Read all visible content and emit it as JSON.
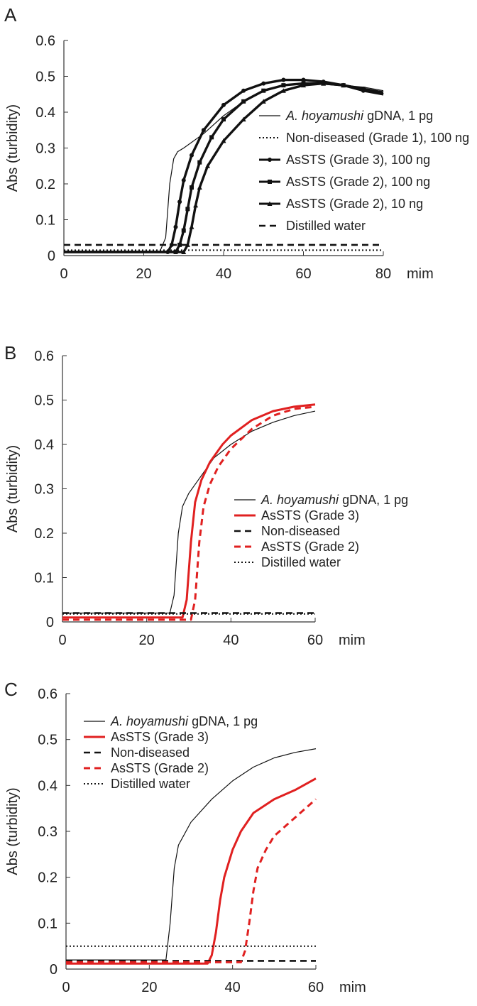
{
  "chart_data": [
    {
      "type": "line",
      "panel_label": "A",
      "title": "",
      "xlabel": "mim",
      "ylabel": "Abs (turbidity)",
      "xlim": [
        0,
        80
      ],
      "ylim": [
        0,
        0.6
      ],
      "x_ticks": [
        "0",
        "20",
        "40",
        "60",
        "80"
      ],
      "y_ticks": [
        "0",
        "0.1",
        "0.2",
        "0.3",
        "0.4",
        "0.5",
        "0.6"
      ],
      "legend_position": "right",
      "series": [
        {
          "name": "A. hoyamushi gDNA, 1 pg",
          "name_italic": "A. hoyamushi",
          "name_rest": " gDNA, 1 pg",
          "color": "#111111",
          "style": "thin",
          "x": [
            0,
            24,
            25.5,
            26.5,
            27.5,
            28.5,
            30,
            35,
            40,
            45,
            50,
            55,
            60,
            65,
            70,
            75,
            80
          ],
          "y": [
            0.01,
            0.01,
            0.05,
            0.2,
            0.27,
            0.29,
            0.3,
            0.34,
            0.39,
            0.43,
            0.46,
            0.475,
            0.48,
            0.48,
            0.475,
            0.47,
            0.46
          ]
        },
        {
          "name": "Non-diseased (Grade 1), 100 ng",
          "color": "#111111",
          "style": "dotted",
          "x": [
            0,
            80
          ],
          "y": [
            0.015,
            0.015
          ]
        },
        {
          "name": "AsSTS (Grade 3), 100 ng",
          "color": "#111111",
          "style": "thick-dot",
          "x": [
            0,
            26,
            27,
            28,
            29,
            30,
            32,
            35,
            40,
            45,
            50,
            55,
            60,
            65,
            70,
            75,
            80
          ],
          "y": [
            0.01,
            0.01,
            0.03,
            0.08,
            0.15,
            0.21,
            0.28,
            0.35,
            0.42,
            0.46,
            0.48,
            0.49,
            0.49,
            0.485,
            0.475,
            0.46,
            0.45
          ]
        },
        {
          "name": "AsSTS (Grade 2), 100 ng",
          "color": "#111111",
          "style": "thick-square",
          "x": [
            0,
            28,
            29,
            30,
            31,
            32,
            34,
            37,
            40,
            45,
            50,
            55,
            60,
            65,
            70,
            75,
            80
          ],
          "y": [
            0.01,
            0.01,
            0.03,
            0.07,
            0.13,
            0.19,
            0.26,
            0.33,
            0.38,
            0.43,
            0.46,
            0.475,
            0.48,
            0.48,
            0.475,
            0.465,
            0.45
          ]
        },
        {
          "name": "AsSTS (Grade 2), 10 ng",
          "color": "#111111",
          "style": "thick-triangle",
          "x": [
            0,
            30,
            31,
            32,
            33,
            34,
            36,
            40,
            45,
            50,
            55,
            60,
            65,
            70,
            75,
            80
          ],
          "y": [
            0.01,
            0.01,
            0.03,
            0.08,
            0.14,
            0.19,
            0.25,
            0.32,
            0.38,
            0.43,
            0.46,
            0.475,
            0.48,
            0.475,
            0.465,
            0.455
          ]
        },
        {
          "name": "Distilled water",
          "color": "#111111",
          "style": "dashed",
          "x": [
            0,
            80
          ],
          "y": [
            0.03,
            0.03
          ]
        }
      ]
    },
    {
      "type": "line",
      "panel_label": "B",
      "title": "",
      "xlabel": "mim",
      "ylabel": "Abs (turbidity)",
      "xlim": [
        0,
        60
      ],
      "ylim": [
        0,
        0.6
      ],
      "x_ticks": [
        "0",
        "20",
        "40",
        "60"
      ],
      "y_ticks": [
        "0",
        "0.1",
        "0.2",
        "0.3",
        "0.4",
        "0.5",
        "0.6"
      ],
      "legend_position": "right",
      "series": [
        {
          "name": "A. hoyamushi gDNA, 1 pg",
          "name_italic": "A. hoyamushi",
          "name_rest": " gDNA, 1 pg",
          "color": "#111111",
          "style": "thin",
          "x": [
            0,
            25.5,
            26.5,
            27.5,
            28.5,
            30,
            33,
            36,
            40,
            45,
            50,
            55,
            60
          ],
          "y": [
            0.02,
            0.02,
            0.06,
            0.2,
            0.26,
            0.29,
            0.33,
            0.37,
            0.4,
            0.43,
            0.45,
            0.465,
            0.475
          ]
        },
        {
          "name": "AsSTS (Grade 3)",
          "color": "#e02020",
          "style": "red-solid",
          "x": [
            0,
            28.5,
            29.5,
            30.5,
            31.5,
            33,
            35,
            38,
            40,
            45,
            50,
            55,
            60
          ],
          "y": [
            0.01,
            0.01,
            0.05,
            0.18,
            0.27,
            0.32,
            0.36,
            0.4,
            0.42,
            0.455,
            0.475,
            0.485,
            0.49
          ]
        },
        {
          "name": "Non-diseased",
          "color": "#111111",
          "style": "dashed",
          "x": [
            0,
            60
          ],
          "y": [
            0.02,
            0.02
          ]
        },
        {
          "name": "AsSTS (Grade 2)",
          "color": "#e02020",
          "style": "red-dashed",
          "x": [
            0,
            30.5,
            31.5,
            32.5,
            33.5,
            35,
            37,
            40,
            45,
            50,
            55,
            60
          ],
          "y": [
            0.005,
            0.005,
            0.05,
            0.18,
            0.26,
            0.31,
            0.35,
            0.39,
            0.435,
            0.465,
            0.48,
            0.485
          ]
        },
        {
          "name": "Distilled water",
          "color": "#111111",
          "style": "dotted",
          "x": [
            0,
            60
          ],
          "y": [
            0.018,
            0.018
          ]
        }
      ]
    },
    {
      "type": "line",
      "panel_label": "C",
      "title": "",
      "xlabel": "mim",
      "ylabel": "Abs (turbidity)",
      "xlim": [
        0,
        60
      ],
      "ylim": [
        0,
        0.6
      ],
      "x_ticks": [
        "0",
        "20",
        "40",
        "60"
      ],
      "y_ticks": [
        "0",
        "0.1",
        "0.2",
        "0.3",
        "0.4",
        "0.5",
        "0.6"
      ],
      "legend_position": "top-left",
      "series": [
        {
          "name": "A. hoyamushi gDNA, 1 pg",
          "name_italic": "A. hoyamushi",
          "name_rest": " gDNA, 1 pg",
          "color": "#111111",
          "style": "thin",
          "x": [
            0,
            24,
            25,
            26,
            27,
            30,
            35,
            40,
            45,
            50,
            55,
            60
          ],
          "y": [
            0.02,
            0.02,
            0.1,
            0.22,
            0.27,
            0.32,
            0.37,
            0.41,
            0.44,
            0.46,
            0.472,
            0.48
          ]
        },
        {
          "name": "AsSTS (Grade 3)",
          "color": "#e02020",
          "style": "red-solid",
          "x": [
            0,
            34,
            35,
            36,
            37,
            38,
            40,
            42,
            45,
            50,
            55,
            60
          ],
          "y": [
            0.012,
            0.012,
            0.03,
            0.08,
            0.15,
            0.2,
            0.26,
            0.3,
            0.34,
            0.37,
            0.39,
            0.415
          ]
        },
        {
          "name": "Non-diseased",
          "color": "#111111",
          "style": "dashed",
          "x": [
            0,
            60
          ],
          "y": [
            0.018,
            0.018
          ]
        },
        {
          "name": "AsSTS (Grade 2)",
          "color": "#e02020",
          "style": "red-dashed",
          "x": [
            0,
            42,
            43,
            44,
            45,
            46,
            48,
            50,
            55,
            60
          ],
          "y": [
            0.015,
            0.015,
            0.04,
            0.1,
            0.17,
            0.22,
            0.26,
            0.29,
            0.33,
            0.37
          ]
        },
        {
          "name": "Distilled water",
          "color": "#111111",
          "style": "dotted",
          "x": [
            0,
            60
          ],
          "y": [
            0.05,
            0.05
          ]
        }
      ]
    }
  ]
}
